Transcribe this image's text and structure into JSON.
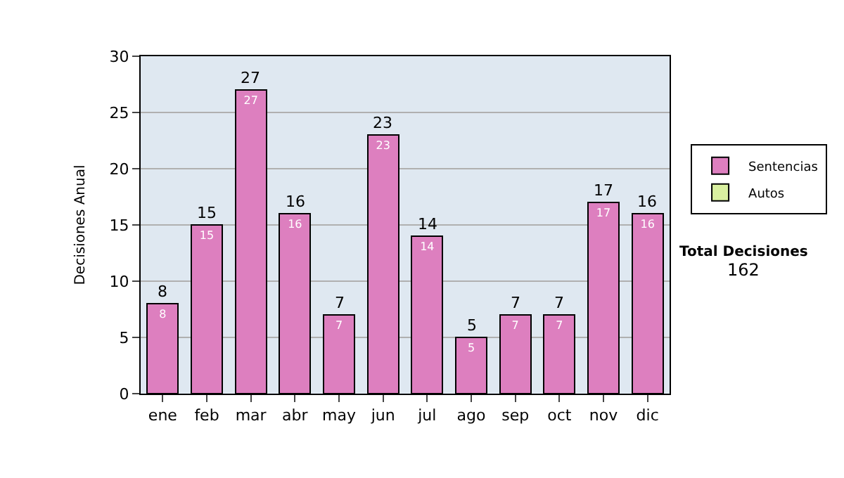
{
  "chart_data": {
    "type": "bar",
    "ylabel": "Decisiones Anual",
    "categories": [
      "ene",
      "feb",
      "mar",
      "abr",
      "may",
      "jun",
      "jul",
      "ago",
      "sep",
      "oct",
      "nov",
      "dic"
    ],
    "series": [
      {
        "name": "Sentencias",
        "color": "#dd7fbf",
        "values": [
          8,
          15,
          27,
          16,
          7,
          23,
          14,
          5,
          7,
          7,
          17,
          16
        ]
      },
      {
        "name": "Autos",
        "color": "#d9f0a0",
        "values": [
          null,
          null,
          null,
          null,
          null,
          null,
          null,
          null,
          null,
          null,
          null,
          null
        ]
      }
    ],
    "stacked": true,
    "data_labels": true,
    "totals": [
      "8",
      "15",
      "27",
      "16",
      "7",
      "23",
      "14",
      "5",
      "7",
      "7",
      "17",
      "16"
    ],
    "ylim": [
      0,
      30
    ],
    "yticks": [
      0,
      5,
      10,
      15,
      20,
      25,
      30
    ],
    "grid": "y",
    "legend": "right",
    "annotations": [
      "Total Decisiones",
      "162"
    ]
  }
}
